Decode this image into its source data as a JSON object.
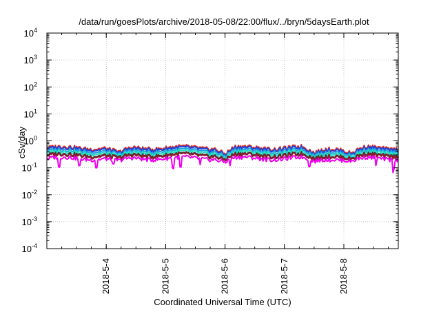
{
  "chart_data": {
    "type": "line",
    "title": "/data/run/goesPlots/archive/2018-05-08/22:00/flux/../bryn/5daysEarth.plot",
    "xlabel": "Coordinated Universal Time (UTC)",
    "ylabel": "cSv/day",
    "y_scale": "log",
    "ylim": [
      0.0001,
      10000
    ],
    "y_ticks": [
      {
        "value": 10000,
        "base": "10",
        "exp": "4"
      },
      {
        "value": 1000,
        "base": "10",
        "exp": "3"
      },
      {
        "value": 100,
        "base": "10",
        "exp": "2"
      },
      {
        "value": 10,
        "base": "10",
        "exp": "1"
      },
      {
        "value": 1,
        "base": "10",
        "exp": "0"
      },
      {
        "value": 0.1,
        "base": "10",
        "exp": "-1"
      },
      {
        "value": 0.01,
        "base": "10",
        "exp": "-2"
      },
      {
        "value": 0.001,
        "base": "10",
        "exp": "-3"
      },
      {
        "value": 0.0001,
        "base": "10",
        "exp": "-4"
      }
    ],
    "x_type": "date",
    "xlim": [
      "2018-05-03T00:00",
      "2018-05-08T22:00"
    ],
    "x_ticks": [
      "2018-5-4",
      "2018-5-5",
      "2018-5-6",
      "2018-5-7",
      "2018-5-8"
    ],
    "x_tick_dates": [
      "2018-05-04T00:00",
      "2018-05-05T00:00",
      "2018-05-06T00:00",
      "2018-05-07T00:00",
      "2018-05-08T00:00"
    ],
    "grid": true,
    "grid_style": "dotted",
    "legend": "none",
    "series": [
      {
        "color": "#e8332a",
        "base": 0.55,
        "dip_factor": 0.6,
        "spike_factor": 1.0
      },
      {
        "color": "#1f3fd6",
        "base": 0.5,
        "dip_factor": 0.6,
        "spike_factor": 1.0
      },
      {
        "color": "#1fa2e0",
        "base": 0.42,
        "dip_factor": 0.65,
        "spike_factor": 1.0
      },
      {
        "color": "#22e0c0",
        "base": 0.36,
        "dip_factor": 0.65,
        "spike_factor": 1.0
      },
      {
        "color": "#3a3a3a",
        "base": 0.3,
        "dip_factor": 0.7,
        "spike_factor": 1.0
      },
      {
        "color": "#8a1a2a",
        "base": 0.28,
        "dip_factor": 0.7,
        "spike_factor": 1.0
      },
      {
        "color": "#f000f0",
        "base": 0.22,
        "dip_factor": 0.75,
        "spike_factor": 0.4
      }
    ],
    "dips": [
      {
        "at": "2018-05-04T05:00",
        "width_h": 6
      },
      {
        "at": "2018-05-06T00:00",
        "width_h": 4
      },
      {
        "at": "2018-05-07T12:00",
        "width_h": 5
      },
      {
        "at": "2018-05-08T03:00",
        "width_h": 6
      }
    ],
    "spikes": [
      {
        "at": "2018-05-03T05:00",
        "value": 0.08
      },
      {
        "at": "2018-05-03T13:00",
        "value": 0.12
      },
      {
        "at": "2018-05-03T20:00",
        "value": 0.1
      },
      {
        "at": "2018-05-04T03:00",
        "value": 0.14
      },
      {
        "at": "2018-05-05T03:00",
        "value": 0.09
      },
      {
        "at": "2018-05-05T06:00",
        "value": 0.07
      },
      {
        "at": "2018-05-05T14:00",
        "value": 0.13
      },
      {
        "at": "2018-05-06T02:00",
        "value": 0.12
      },
      {
        "at": "2018-05-07T10:00",
        "value": 0.11
      },
      {
        "at": "2018-05-08T13:00",
        "value": 0.12
      },
      {
        "at": "2018-05-08T20:00",
        "value": 0.03
      }
    ]
  }
}
